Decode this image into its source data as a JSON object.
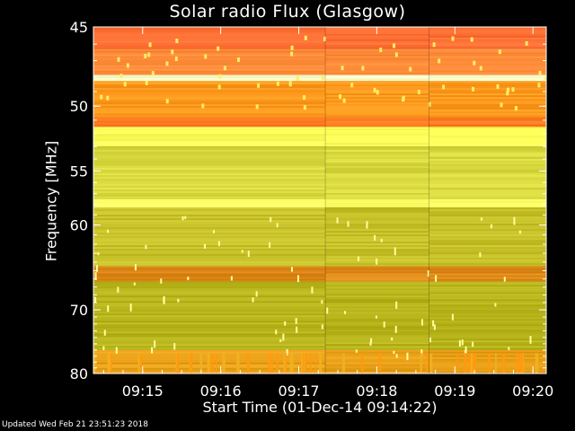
{
  "chart_data": {
    "type": "heatmap",
    "title": "Solar radio Flux (Glasgow)",
    "xlabel": "Start Time (01-Dec-14 09:14:22)",
    "ylabel": "Frequency [MHz]",
    "x_tick_labels": [
      "09:15",
      "09:16",
      "09:17",
      "09:18",
      "09:19",
      "09:20"
    ],
    "x_ticks_minutes_after_start": [
      0.63,
      1.63,
      2.63,
      3.63,
      4.63,
      5.63
    ],
    "xlim_minutes_after_start": [
      0,
      5.8
    ],
    "y_tick_labels": [
      "45",
      "50",
      "55",
      "60",
      "70",
      "80"
    ],
    "y_ticks_mhz": [
      45,
      50,
      55,
      60,
      70,
      80
    ],
    "ylim_mhz": [
      45,
      80
    ],
    "y_scale": "reciprocal",
    "colormap": "yellow-orange",
    "bands": [
      {
        "from_mhz": 45.0,
        "to_mhz": 46.3,
        "level": "high",
        "color": "#ff6f33"
      },
      {
        "from_mhz": 46.3,
        "to_mhz": 47.9,
        "level": "high",
        "color": "#ff8c3a"
      },
      {
        "from_mhz": 47.9,
        "to_mhz": 48.3,
        "level": "peak",
        "color": "#ffffcc"
      },
      {
        "from_mhz": 48.3,
        "to_mhz": 50.8,
        "level": "high",
        "color": "#ff9a1e"
      },
      {
        "from_mhz": 50.8,
        "to_mhz": 51.5,
        "level": "high",
        "color": "#ff7a20"
      },
      {
        "from_mhz": 51.5,
        "to_mhz": 53.0,
        "level": "medium",
        "color": "#ffff5a"
      },
      {
        "from_mhz": 53.0,
        "to_mhz": 57.5,
        "level": "medium",
        "color": "#dada40"
      },
      {
        "from_mhz": 57.5,
        "to_mhz": 58.3,
        "level": "medium",
        "color": "#ffff66"
      },
      {
        "from_mhz": 58.3,
        "to_mhz": 64.5,
        "level": "low",
        "color": "#c8c22a"
      },
      {
        "from_mhz": 64.5,
        "to_mhz": 66.3,
        "level": "high",
        "color": "#e08a1a"
      },
      {
        "from_mhz": 66.3,
        "to_mhz": 76.0,
        "level": "low",
        "color": "#b8b41c"
      },
      {
        "from_mhz": 76.0,
        "to_mhz": 80.0,
        "level": "medium",
        "color": "#e8a018"
      }
    ],
    "segment_breaks_minutes_after_start": [
      2.97,
      4.3
    ]
  },
  "footer": {
    "updated": "Updated Wed Feb 21 23:51:23 2018"
  },
  "colors": {
    "background": "#000000",
    "axis": "#ffffff",
    "text": "#ffffff"
  }
}
